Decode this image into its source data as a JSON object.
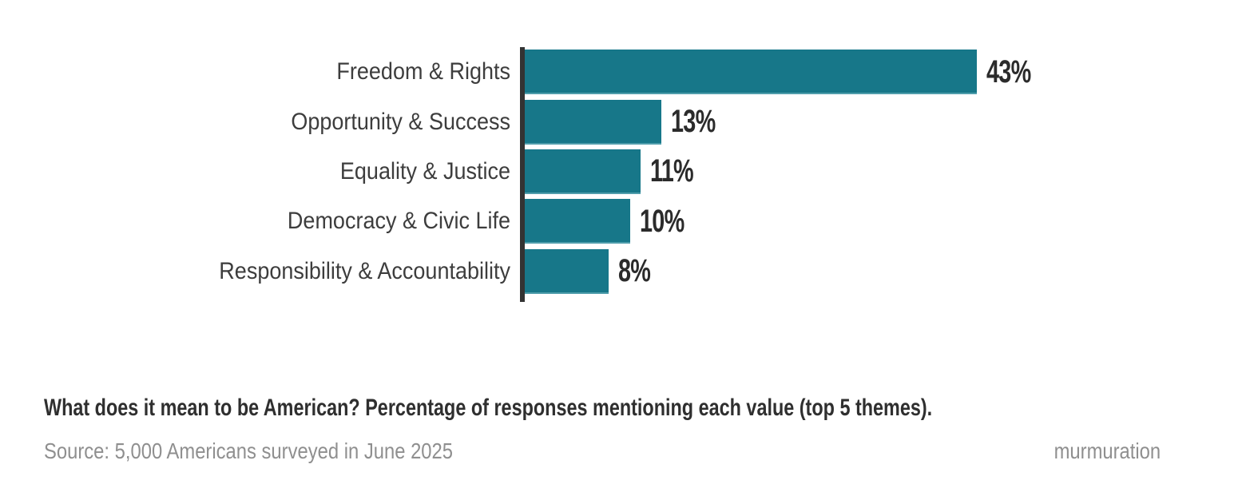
{
  "chart_data": {
    "type": "bar",
    "orientation": "horizontal",
    "title": "What does it mean to be American? Percentage of responses mentioning each value (top 5 themes).",
    "source": "Source: 5,000 Americans surveyed in June 2025",
    "branding": "murmuration",
    "categories": [
      "Freedom & Rights",
      "Opportunity & Success",
      "Equality & Justice",
      "Democracy & Civic Life",
      "Responsibility & Accountability"
    ],
    "values": [
      43,
      13,
      11,
      10,
      8
    ],
    "value_labels": [
      "43%",
      "13%",
      "11%",
      "10%",
      "8%"
    ],
    "xlim": [
      0,
      43
    ],
    "grid": false,
    "legend": false,
    "colors": {
      "bar": "#177789",
      "bar_edge": "#4f9dab",
      "axis": "#333333",
      "category_label": "#3d3d3d",
      "value_label": "#2b2b2b",
      "title_text": "#2f2f2f",
      "muted_text": "#8f8f8f"
    }
  }
}
